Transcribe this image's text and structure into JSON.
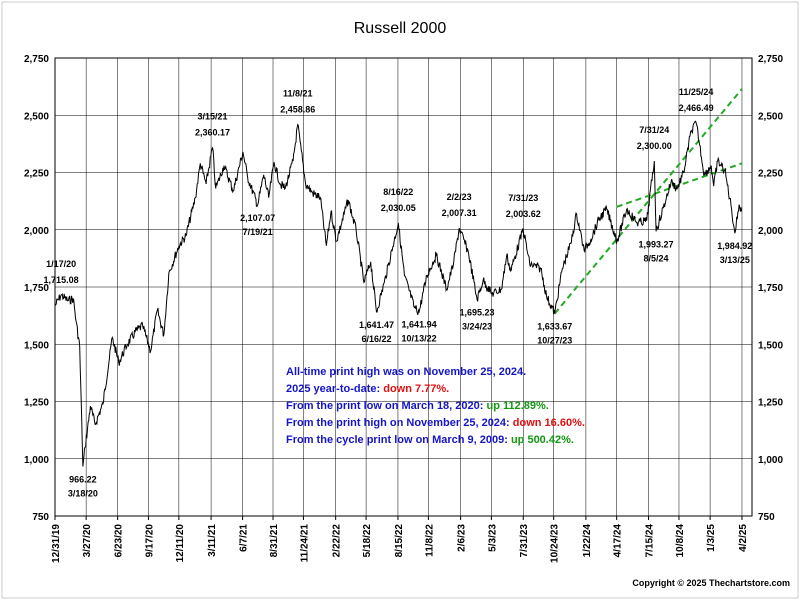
{
  "colors": {
    "notes_text": "#1515c8",
    "negative": "#e01010",
    "positive": "#119911",
    "trendline": "#22aa22",
    "price_line": "#000000"
  },
  "chart_data": {
    "type": "line",
    "title": "Russell 2000",
    "y_axis": {
      "min": 750,
      "max": 2750,
      "ticks": [
        750,
        1000,
        1250,
        1500,
        1750,
        2000,
        2250,
        2500,
        2750
      ],
      "tick_labels": [
        "750",
        "1,000",
        "1,250",
        "1,500",
        "1,750",
        "2,000",
        "2,250",
        "2,500",
        "2,750"
      ]
    },
    "x_axis": {
      "start": "2019-12-31",
      "end": "2025-04-30",
      "ticks": [
        "2019-12-31",
        "2020-03-27",
        "2020-06-23",
        "2020-09-17",
        "2020-12-11",
        "2021-03-11",
        "2021-06-07",
        "2021-08-31",
        "2021-11-24",
        "2022-02-22",
        "2022-05-18",
        "2022-08-15",
        "2022-11-08",
        "2023-02-06",
        "2023-05-03",
        "2023-07-31",
        "2023-10-24",
        "2024-01-22",
        "2024-04-17",
        "2024-07-15",
        "2024-10-08",
        "2025-01-03",
        "2025-04-02"
      ],
      "tick_labels": [
        "12/31/19",
        "3/27/20",
        "6/23/20",
        "9/17/20",
        "12/11/20",
        "3/11/21",
        "6/7/21",
        "8/31/21",
        "11/24/21",
        "2/22/22",
        "5/18/22",
        "8/15/22",
        "11/8/22",
        "2/6/23",
        "5/3/23",
        "7/31/23",
        "10/24/23",
        "1/22/24",
        "4/17/24",
        "7/15/24",
        "10/8/24",
        "1/3/25",
        "4/2/25"
      ]
    },
    "grid": true,
    "series": [
      {
        "values": [
          [
            "2019-12-31",
            1668
          ],
          [
            "2020-01-17",
            1715
          ],
          [
            "2020-02-05",
            1690
          ],
          [
            "2020-02-20",
            1700
          ],
          [
            "2020-02-28",
            1600
          ],
          [
            "2020-03-09",
            1490
          ],
          [
            "2020-03-18",
            966
          ],
          [
            "2020-03-24",
            1050
          ],
          [
            "2020-04-08",
            1230
          ],
          [
            "2020-04-21",
            1150
          ],
          [
            "2020-05-13",
            1240
          ],
          [
            "2020-06-08",
            1530
          ],
          [
            "2020-06-26",
            1420
          ],
          [
            "2020-07-20",
            1500
          ],
          [
            "2020-08-14",
            1560
          ],
          [
            "2020-09-01",
            1580
          ],
          [
            "2020-09-23",
            1470
          ],
          [
            "2020-10-12",
            1650
          ],
          [
            "2020-10-30",
            1540
          ],
          [
            "2020-11-13",
            1810
          ],
          [
            "2020-12-11",
            1930
          ],
          [
            "2020-12-31",
            1975
          ],
          [
            "2021-01-26",
            2140
          ],
          [
            "2021-02-09",
            2290
          ],
          [
            "2021-02-25",
            2200
          ],
          [
            "2021-03-15",
            2360
          ],
          [
            "2021-03-24",
            2180
          ],
          [
            "2021-04-16",
            2280
          ],
          [
            "2021-05-12",
            2170
          ],
          [
            "2021-06-08",
            2340
          ],
          [
            "2021-06-21",
            2230
          ],
          [
            "2021-07-19",
            2107
          ],
          [
            "2021-08-05",
            2240
          ],
          [
            "2021-08-19",
            2140
          ],
          [
            "2021-09-03",
            2295
          ],
          [
            "2021-09-20",
            2200
          ],
          [
            "2021-10-04",
            2180
          ],
          [
            "2021-10-26",
            2300
          ],
          [
            "2021-11-08",
            2459
          ],
          [
            "2021-11-30",
            2200
          ],
          [
            "2021-12-20",
            2160
          ],
          [
            "2022-01-10",
            2140
          ],
          [
            "2022-01-27",
            1930
          ],
          [
            "2022-02-09",
            2080
          ],
          [
            "2022-02-24",
            1950
          ],
          [
            "2022-03-29",
            2130
          ],
          [
            "2022-04-20",
            2000
          ],
          [
            "2022-05-12",
            1770
          ],
          [
            "2022-05-31",
            1860
          ],
          [
            "2022-06-16",
            1641
          ],
          [
            "2022-07-08",
            1770
          ],
          [
            "2022-08-16",
            2030
          ],
          [
            "2022-09-02",
            1800
          ],
          [
            "2022-09-30",
            1660
          ],
          [
            "2022-10-13",
            1642
          ],
          [
            "2022-11-04",
            1800
          ],
          [
            "2022-11-30",
            1890
          ],
          [
            "2022-12-29",
            1740
          ],
          [
            "2023-01-18",
            1860
          ],
          [
            "2023-02-02",
            2007
          ],
          [
            "2023-02-28",
            1900
          ],
          [
            "2023-03-24",
            1695
          ],
          [
            "2023-04-10",
            1780
          ],
          [
            "2023-05-04",
            1720
          ],
          [
            "2023-05-31",
            1740
          ],
          [
            "2023-06-15",
            1890
          ],
          [
            "2023-06-26",
            1820
          ],
          [
            "2023-07-31",
            2004
          ],
          [
            "2023-08-18",
            1850
          ],
          [
            "2023-09-18",
            1830
          ],
          [
            "2023-10-04",
            1710
          ],
          [
            "2023-10-27",
            1634
          ],
          [
            "2023-11-17",
            1830
          ],
          [
            "2023-12-11",
            1940
          ],
          [
            "2023-12-27",
            2070
          ],
          [
            "2024-01-17",
            1910
          ],
          [
            "2024-02-05",
            1960
          ],
          [
            "2024-02-29",
            2050
          ],
          [
            "2024-03-20",
            2090
          ],
          [
            "2024-04-18",
            1950
          ],
          [
            "2024-05-15",
            2090
          ],
          [
            "2024-06-13",
            2030
          ],
          [
            "2024-07-10",
            2040
          ],
          [
            "2024-07-31",
            2300
          ],
          [
            "2024-08-05",
            1993
          ],
          [
            "2024-09-03",
            2140
          ],
          [
            "2024-09-16",
            2210
          ],
          [
            "2024-10-03",
            2180
          ],
          [
            "2024-10-21",
            2250
          ],
          [
            "2024-11-11",
            2430
          ],
          [
            "2024-11-25",
            2466
          ],
          [
            "2024-12-18",
            2240
          ],
          [
            "2025-01-06",
            2280
          ],
          [
            "2025-01-13",
            2190
          ],
          [
            "2025-01-24",
            2300
          ],
          [
            "2025-02-13",
            2260
          ],
          [
            "2025-03-04",
            2090
          ],
          [
            "2025-03-13",
            1985
          ],
          [
            "2025-03-25",
            2110
          ],
          [
            "2025-04-01",
            2080
          ]
        ]
      }
    ],
    "annotations": [
      {
        "date": "1/17/20",
        "value": "1,715.08",
        "x": "2020-01-17",
        "y": 1715,
        "pos": "above"
      },
      {
        "date": "3/18/20",
        "value": "966.22",
        "x": "2020-03-18",
        "y": 966,
        "pos": "below"
      },
      {
        "date": "3/15/21",
        "value": "2,360.17",
        "x": "2021-03-15",
        "y": 2360,
        "pos": "above"
      },
      {
        "date": "7/19/21",
        "value": "2,107.07",
        "x": "2021-07-19",
        "y": 2107,
        "pos": "below"
      },
      {
        "date": "11/8/21",
        "value": "2,458.86",
        "x": "2021-11-08",
        "y": 2459,
        "pos": "above"
      },
      {
        "date": "6/16/22",
        "value": "1,641.47",
        "x": "2022-06-16",
        "y": 1641,
        "pos": "below"
      },
      {
        "date": "8/16/22",
        "value": "2,030.05",
        "x": "2022-08-16",
        "y": 2030,
        "pos": "above"
      },
      {
        "date": "10/13/22",
        "value": "1,641.94",
        "x": "2022-10-13",
        "y": 1642,
        "pos": "below"
      },
      {
        "date": "2/2/23",
        "value": "2,007.31",
        "x": "2023-02-02",
        "y": 2007,
        "pos": "above"
      },
      {
        "date": "3/24/23",
        "value": "1,695.23",
        "x": "2023-03-24",
        "y": 1695,
        "pos": "below"
      },
      {
        "date": "7/31/23",
        "value": "2,003.62",
        "x": "2023-07-31",
        "y": 2004,
        "pos": "above"
      },
      {
        "date": "10/27/23",
        "value": "1,633.67",
        "x": "2023-10-27",
        "y": 1634,
        "pos": "below"
      },
      {
        "date": "7/31/24",
        "value": "2,300.00",
        "x": "2024-07-31",
        "y": 2300,
        "pos": "above"
      },
      {
        "date": "8/5/24",
        "value": "1,993.27",
        "x": "2024-08-05",
        "y": 1993,
        "pos": "below"
      },
      {
        "date": "11/25/24",
        "value": "2,466.49",
        "x": "2024-11-25",
        "y": 2466,
        "pos": "above"
      },
      {
        "date": "3/13/25",
        "value": "1,984.92",
        "x": "2025-03-13",
        "y": 1985,
        "pos": "below"
      }
    ],
    "trendlines": [
      {
        "from": [
          "2023-10-27",
          1634
        ],
        "to": [
          "2025-04-02",
          2615
        ]
      },
      {
        "from": [
          "2024-04-17",
          2100
        ],
        "to": [
          "2025-04-02",
          2290
        ]
      }
    ]
  },
  "notes": {
    "line1": "All-time print high was on November 25, 2024.",
    "line2_prefix": "2025 year-to-date: ",
    "line2_value": "down 7.77%.",
    "line3_prefix": "From the print low on March 18, 2020:  ",
    "line3_value": "up 112.89%.",
    "line4_prefix": "From the print high on November 25, 2024:  ",
    "line4_value": "down 16.60%.",
    "line5_prefix": "From the cycle print low on March 9, 2009:  ",
    "line5_value": "up 500.42%."
  },
  "copyright": "Copyright © 2025 Thechartstore.com"
}
